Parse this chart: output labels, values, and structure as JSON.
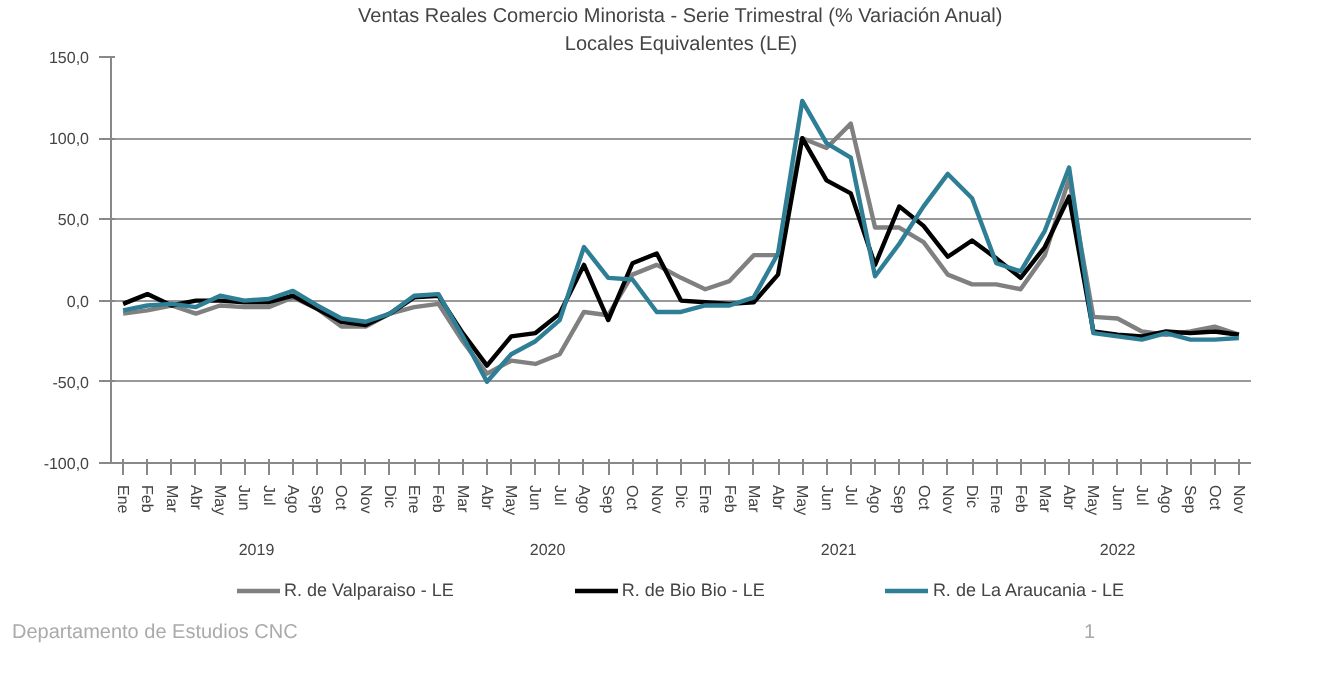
{
  "chart_data": {
    "type": "line",
    "title": "Ventas Reales Comercio Minorista - Serie Trimestral (% Variación Anual)",
    "subtitle": "Locales Equivalentes (LE)",
    "categories": [
      "Ene",
      "Feb",
      "Mar",
      "Abr",
      "May",
      "Jun",
      "Jul",
      "Ago",
      "Sep",
      "Oct",
      "Nov",
      "Dic",
      "Ene",
      "Feb",
      "Mar",
      "Abr",
      "May",
      "Jun",
      "Jul",
      "Ago",
      "Sep",
      "Oct",
      "Nov",
      "Dic",
      "Ene",
      "Feb",
      "Mar",
      "Abr",
      "May",
      "Jun",
      "Jul",
      "Ago",
      "Sep",
      "Oct",
      "Nov",
      "Dic",
      "Ene",
      "Feb",
      "Mar",
      "Abr",
      "May",
      "Jun",
      "Jul",
      "Ago",
      "Sep",
      "Oct",
      "Nov"
    ],
    "series": [
      {
        "name": "R. de Valparaiso - LE",
        "color": "#808080",
        "values": [
          -8,
          -6,
          -3,
          -8,
          -3,
          -4,
          -4,
          2,
          -5,
          -16,
          -16,
          -8,
          -4,
          -2,
          -25,
          -45,
          -37,
          -39,
          -33,
          -7,
          -9,
          16,
          22,
          14,
          7,
          12,
          28,
          28,
          100,
          94,
          109,
          45,
          45,
          36,
          16,
          10,
          10,
          7,
          28,
          75,
          -10,
          -11,
          -19,
          -21,
          -19,
          -16,
          -21
        ]
      },
      {
        "name": "R. de Bio Bio - LE",
        "color": "#000000",
        "values": [
          -2,
          4,
          -3,
          0,
          0,
          -1,
          -1,
          3,
          -5,
          -13,
          -15,
          -8,
          2,
          3,
          -20,
          -40,
          -22,
          -20,
          -8,
          22,
          -12,
          23,
          29,
          0,
          -1,
          -2,
          -1,
          16,
          100,
          74,
          66,
          22,
          58,
          46,
          27,
          37,
          26,
          14,
          33,
          64,
          -19,
          -21,
          -22,
          -19,
          -20,
          -19,
          -21
        ]
      },
      {
        "name": "R. de La Araucania - LE",
        "color": "#2e7f96",
        "values": [
          -6,
          -3,
          -2,
          -4,
          3,
          0,
          1,
          6,
          -3,
          -11,
          -13,
          -8,
          3,
          4,
          -22,
          -50,
          -33,
          -25,
          -12,
          33,
          14,
          13,
          -7,
          -7,
          -3,
          -3,
          2,
          29,
          123,
          97,
          88,
          15,
          35,
          58,
          78,
          63,
          23,
          18,
          43,
          82,
          -20,
          -22,
          -24,
          -20,
          -24,
          -24,
          -23
        ]
      }
    ],
    "ylim": [
      -100,
      150
    ],
    "yticks": [
      {
        "value": -100,
        "label": "-100,0"
      },
      {
        "value": -50,
        "label": "-50,0"
      },
      {
        "value": 0,
        "label": "0,0"
      },
      {
        "value": 50,
        "label": "50,0"
      },
      {
        "value": 100,
        "label": "100,0"
      },
      {
        "value": 150,
        "label": "150,0"
      }
    ],
    "grid": "y",
    "legend": "bottom",
    "marker": "none",
    "line_style": "solid",
    "annotations": [
      "2019",
      "2020",
      "2021",
      "2022",
      "Departamento de Estudios CNC",
      "1"
    ]
  }
}
